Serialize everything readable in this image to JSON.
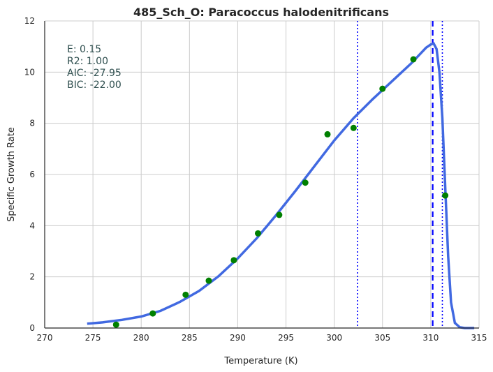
{
  "chart_data": {
    "type": "scatter",
    "title": "485_Sch_O: Paracoccus halodenitrificans",
    "xlabel": "Temperature (K)",
    "ylabel": "Specific Growth Rate",
    "xlim": [
      270,
      315
    ],
    "ylim": [
      0,
      12
    ],
    "xticks": [
      "270",
      "275",
      "280",
      "285",
      "290",
      "295",
      "300",
      "305",
      "310",
      "315"
    ],
    "yticks": [
      "0",
      "2",
      "4",
      "6",
      "8",
      "10",
      "12"
    ],
    "grid": true,
    "stats": [
      "E:  0.15",
      "R2:  1.00",
      "AIC: -27.95",
      "BIC: -22.00"
    ],
    "observed": {
      "color": "#008000",
      "x": [
        277.4,
        281.2,
        284.6,
        287.0,
        289.6,
        292.1,
        294.3,
        297.0,
        299.3,
        302.0,
        305.0,
        308.2,
        311.5
      ],
      "y": [
        0.13,
        0.57,
        1.3,
        1.85,
        2.65,
        3.7,
        4.42,
        5.68,
        7.57,
        7.82,
        9.35,
        10.5,
        5.18
      ]
    },
    "fitted": {
      "color": "#4169e1",
      "x": [
        274.4,
        276,
        278,
        280,
        282,
        284,
        286,
        288,
        290,
        292,
        294,
        296,
        298,
        300,
        302,
        304,
        306,
        308,
        309,
        309.5,
        310,
        310.3,
        310.6,
        310.9,
        311.2,
        311.5,
        311.8,
        312.1,
        312.5,
        313,
        313.5,
        314.5
      ],
      "y": [
        0.17,
        0.22,
        0.32,
        0.45,
        0.67,
        1.02,
        1.45,
        2.02,
        2.72,
        3.52,
        4.42,
        5.37,
        6.35,
        7.33,
        8.2,
        8.95,
        9.65,
        10.35,
        10.75,
        10.95,
        11.08,
        11.12,
        10.9,
        10.0,
        8.2,
        5.5,
        2.8,
        1.0,
        0.2,
        0.03,
        0.0,
        0.0
      ]
    },
    "vlines": [
      {
        "x": 302.4,
        "style": "dotted",
        "color": "#0000ff"
      },
      {
        "x": 310.2,
        "style": "dashed",
        "color": "#0000ff"
      },
      {
        "x": 311.2,
        "style": "dotted",
        "color": "#0000ff"
      }
    ]
  }
}
